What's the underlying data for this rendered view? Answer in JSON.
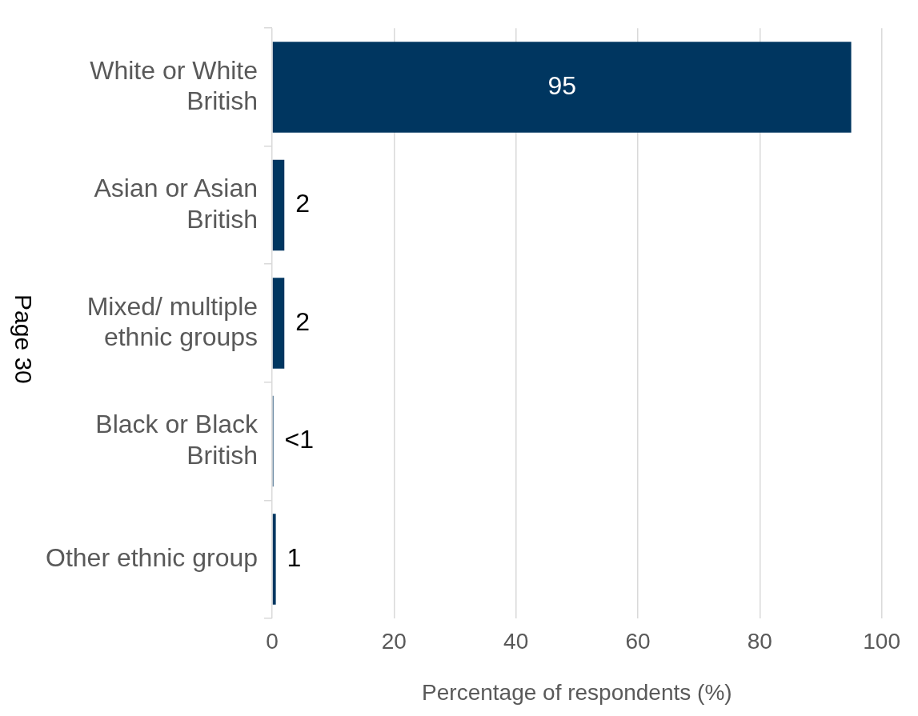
{
  "chart_data": {
    "type": "bar",
    "orientation": "horizontal",
    "xlabel": "Percentage of respondents (%)",
    "categories": [
      "White or White British",
      "Asian or Asian British",
      "Mixed/ multiple ethnic groups",
      "Black or Black British",
      "Other ethnic group"
    ],
    "values": [
      95,
      2,
      2,
      0.2,
      0.6
    ],
    "value_labels": [
      "95",
      "2",
      "2",
      "<1",
      "1"
    ],
    "color": "#003660",
    "xlim": [
      0,
      100
    ],
    "xticks": [
      0,
      20,
      40,
      60,
      80,
      100
    ],
    "grid": "x",
    "annotations": [
      "Page 30"
    ]
  }
}
